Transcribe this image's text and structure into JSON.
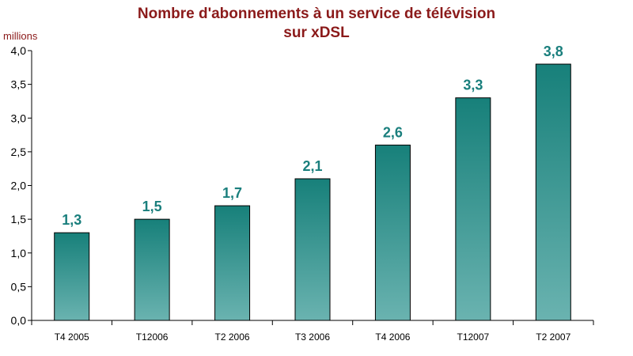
{
  "chart_data": {
    "type": "bar",
    "title_line1": "Nombre d'abonnements à un service de télévision",
    "title_line2": "sur xDSL",
    "ylabel": "millions",
    "xlabel": "",
    "categories": [
      "T4 2005",
      "T12006",
      "T2 2006",
      "T3 2006",
      "T4 2006",
      "T12007",
      "T2 2007"
    ],
    "values": [
      1.3,
      1.5,
      1.7,
      2.1,
      2.6,
      3.3,
      3.8
    ],
    "value_labels": [
      "1,3",
      "1,5",
      "1,7",
      "2,1",
      "2,6",
      "3,3",
      "3,8"
    ],
    "ylim": [
      0,
      4.0
    ],
    "yticks": [
      0,
      0.5,
      1.0,
      1.5,
      2.0,
      2.5,
      3.0,
      3.5,
      4.0
    ],
    "ytick_labels": [
      "0,0",
      "0,5",
      "1,0",
      "1,5",
      "2,0",
      "2,5",
      "3,0",
      "3,5",
      "4,0"
    ],
    "grid": false,
    "legend": "none",
    "colors": {
      "bar_top": "#17807a",
      "bar_bottom": "#6ab3b0",
      "value_label": "#1a7f7d",
      "title": "#8b1a1a"
    }
  }
}
